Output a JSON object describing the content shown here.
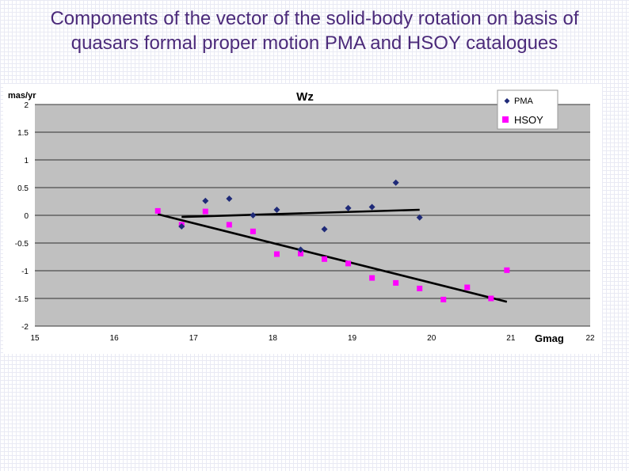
{
  "slide": {
    "title_line1": "Components of the vector of the solid-body rotation on basis of",
    "title_line2": "quasars formal proper motion PMA  and HSOY catalogues"
  },
  "colors": {
    "title": "#4b2a7a",
    "plot_bg": "#c0c0c0",
    "pma": "#1f2a78",
    "hsoy": "#ff00ff",
    "trend": "#000000"
  },
  "chart_data": {
    "type": "scatter",
    "title": "Wz",
    "xlabel": "Gmag",
    "ylabel": "mas/yr",
    "xlim": [
      15,
      22
    ],
    "ylim": [
      -2,
      2
    ],
    "x_ticks": [
      "15",
      "16",
      "17",
      "18",
      "19",
      "20",
      "21",
      "22"
    ],
    "y_ticks": [
      "2",
      "1.5",
      "1",
      "0.5",
      "0",
      "-0.5",
      "-1",
      "-1.5",
      "-2"
    ],
    "grid": "horizontal",
    "legend_position": "top-right",
    "series": [
      {
        "name": "PMA",
        "marker": "diamond",
        "points": [
          [
            16.85,
            -0.2
          ],
          [
            17.15,
            0.26
          ],
          [
            17.45,
            0.3
          ],
          [
            17.75,
            0.0
          ],
          [
            18.05,
            0.1
          ],
          [
            18.35,
            -0.62
          ],
          [
            18.65,
            -0.25
          ],
          [
            18.95,
            0.13
          ],
          [
            19.25,
            0.15
          ],
          [
            19.55,
            0.59
          ],
          [
            19.85,
            -0.04
          ]
        ]
      },
      {
        "name": "HSOY",
        "marker": "square",
        "points": [
          [
            16.55,
            0.08
          ],
          [
            16.85,
            -0.17
          ],
          [
            17.15,
            0.07
          ],
          [
            17.45,
            -0.17
          ],
          [
            17.75,
            -0.29
          ],
          [
            18.05,
            -0.7
          ],
          [
            18.35,
            -0.69
          ],
          [
            18.65,
            -0.79
          ],
          [
            18.95,
            -0.87
          ],
          [
            19.25,
            -1.13
          ],
          [
            19.55,
            -1.22
          ],
          [
            19.85,
            -1.32
          ],
          [
            20.15,
            -1.52
          ],
          [
            20.45,
            -1.3
          ],
          [
            20.75,
            -1.5
          ],
          [
            20.95,
            -0.99
          ]
        ]
      }
    ],
    "trend_lines": [
      {
        "series": "PMA",
        "x": [
          16.85,
          19.85
        ],
        "y": [
          -0.03,
          0.1
        ]
      },
      {
        "series": "HSOY",
        "x": [
          16.55,
          20.95
        ],
        "y": [
          0.02,
          -1.56
        ]
      }
    ]
  }
}
